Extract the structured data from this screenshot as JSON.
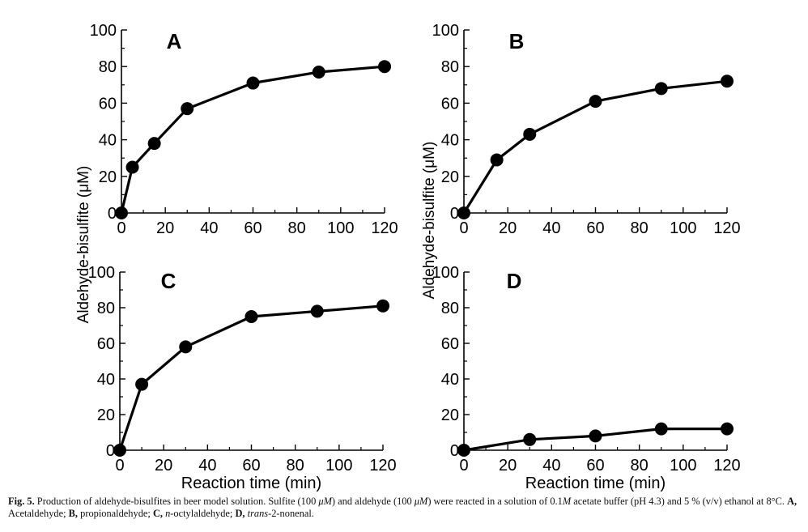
{
  "figure": {
    "y_axis_title_left": "Aldehyde-bisulfite (μM)",
    "y_axis_title_right": "Aldehyde-bisulfite (μM)"
  },
  "caption": {
    "label": "Fig. 5.",
    "text1": " Production of aldehyde-bisulfites in beer model solution. Sulfite (100 ",
    "unit1": "μM",
    "text2": ") and aldehyde (100 ",
    "unit2": "μM",
    "text3": ") were reacted in a solution of 0.1",
    "molar": "M",
    "text4": " acetate buffer (pH 4.3) and 5 % (v/v) ethanol at 8°C. ",
    "keyA": "A,",
    "descA": " Acetaldehyde; ",
    "keyB": "B,",
    "descB": " propionaldehyde; ",
    "keyC": "C,",
    "italC": "n",
    "descC": "-octylaldehyde; ",
    "keyD": "D,",
    "italD": "trans",
    "descD": "-2-nonenal."
  },
  "chart_data": [
    {
      "type": "line",
      "panel": "A",
      "x": [
        0,
        5,
        15,
        30,
        60,
        90,
        120
      ],
      "y": [
        0,
        25,
        38,
        57,
        71,
        77,
        80
      ],
      "xlim": [
        0,
        120
      ],
      "ylim": [
        0,
        100
      ],
      "xticks": [
        0,
        20,
        40,
        60,
        80,
        100,
        120
      ],
      "yticks": [
        0,
        20,
        40,
        60,
        80,
        100
      ],
      "xlabel": "",
      "ylabel": "Aldehyde-bisulfite (μM)"
    },
    {
      "type": "line",
      "panel": "B",
      "x": [
        0,
        15,
        30,
        60,
        90,
        120
      ],
      "y": [
        0,
        29,
        43,
        61,
        68,
        72
      ],
      "xlim": [
        0,
        120
      ],
      "ylim": [
        0,
        100
      ],
      "xticks": [
        0,
        20,
        40,
        60,
        80,
        100,
        120
      ],
      "yticks": [
        0,
        20,
        40,
        60,
        80,
        100
      ],
      "xlabel": "",
      "ylabel": "Aldehyde-bisulfite (μM)"
    },
    {
      "type": "line",
      "panel": "C",
      "x": [
        0,
        10,
        30,
        60,
        90,
        120
      ],
      "y": [
        0,
        37,
        58,
        75,
        78,
        81
      ],
      "xlim": [
        0,
        120
      ],
      "ylim": [
        0,
        100
      ],
      "xticks": [
        0,
        20,
        40,
        60,
        80,
        100,
        120
      ],
      "yticks": [
        0,
        20,
        40,
        60,
        80,
        100
      ],
      "xlabel": "Reaction time (min)",
      "ylabel": "Aldehyde-bisulfite (μM)"
    },
    {
      "type": "line",
      "panel": "D",
      "x": [
        0,
        30,
        60,
        90,
        120
      ],
      "y": [
        0,
        6,
        8,
        12,
        12
      ],
      "xlim": [
        0,
        120
      ],
      "ylim": [
        0,
        100
      ],
      "xticks": [
        0,
        20,
        40,
        60,
        80,
        100,
        120
      ],
      "yticks": [
        0,
        20,
        40,
        60,
        80,
        100
      ],
      "xlabel": "Reaction time (min)",
      "ylabel": "Aldehyde-bisulfite (μM)"
    }
  ]
}
